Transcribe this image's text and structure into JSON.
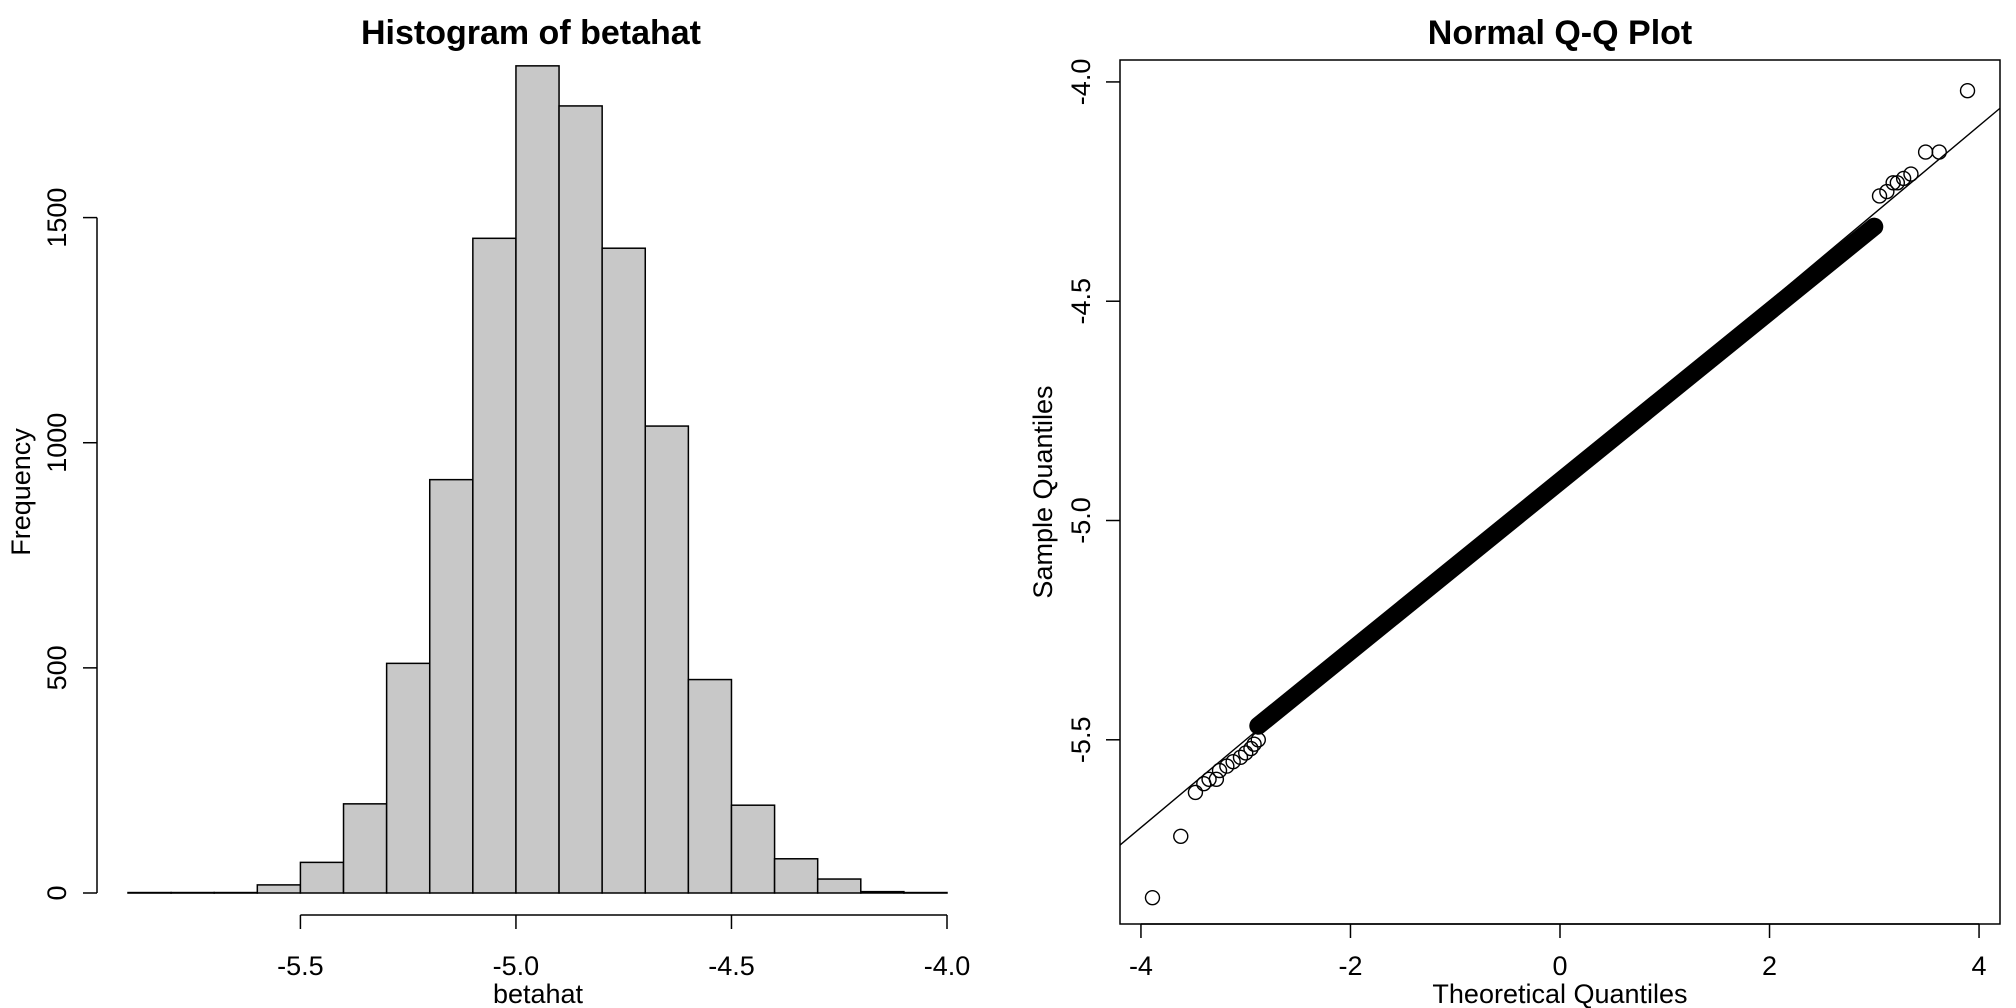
{
  "chart_data": [
    {
      "type": "bar",
      "subtype": "histogram",
      "title": "Histogram of betahat",
      "xlabel": "betahat",
      "ylabel": "Frequency",
      "bin_edges": [
        -5.9,
        -5.8,
        -5.7,
        -5.6,
        -5.5,
        -5.4,
        -5.3,
        -5.2,
        -5.1,
        -5.0,
        -4.9,
        -4.8,
        -4.7,
        -4.6,
        -4.5,
        -4.4,
        -4.3,
        -4.2,
        -4.1,
        -4.0
      ],
      "values": [
        1,
        1,
        1,
        18,
        68,
        198,
        510,
        918,
        1454,
        1837,
        1748,
        1432,
        1037,
        474,
        195,
        76,
        31,
        3,
        1
      ],
      "xlim": [
        -5.9,
        -4.0
      ],
      "ylim": [
        0,
        1850
      ],
      "x_ticks": [
        -5.5,
        -5.0,
        -4.5,
        -4.0
      ],
      "x_tick_labels": [
        "-5.5",
        "-5.0",
        "-4.5",
        "-4.0"
      ],
      "y_ticks": [
        0,
        500,
        1000,
        1500
      ],
      "y_tick_labels": [
        "0",
        "500",
        "1000",
        "1500"
      ],
      "bar_color": "#c8c8c8"
    },
    {
      "type": "scatter",
      "subtype": "qq-plot",
      "title": "Normal Q-Q Plot",
      "xlabel": "Theoretical Quantiles",
      "ylabel": "Sample Quantiles",
      "xlim": [
        -4.2,
        4.2
      ],
      "ylim": [
        -5.92,
        -3.95
      ],
      "x_ticks": [
        -4,
        -2,
        0,
        2,
        4
      ],
      "x_tick_labels": [
        "-4",
        "-2",
        "0",
        "2",
        "4"
      ],
      "y_ticks": [
        -5.5,
        -5.0,
        -4.5,
        -4.0
      ],
      "y_tick_labels": [
        "-5.5",
        "-5.0",
        "-4.5",
        "-4.0"
      ],
      "reference_line": {
        "intercept": -4.9,
        "slope": 0.2
      },
      "points": [
        [
          -3.89,
          -5.86
        ],
        [
          -3.62,
          -5.72
        ],
        [
          -3.48,
          -5.62
        ],
        [
          -3.4,
          -5.6
        ],
        [
          -3.35,
          -5.59
        ],
        [
          -3.28,
          -5.59
        ],
        [
          -3.25,
          -5.57
        ],
        [
          -3.18,
          -5.56
        ],
        [
          -3.12,
          -5.55
        ],
        [
          -3.05,
          -5.54
        ],
        [
          -3.0,
          -5.53
        ],
        [
          -2.95,
          -5.52
        ],
        [
          -2.92,
          -5.51
        ],
        [
          -2.88,
          -5.5
        ],
        [
          3.05,
          -4.26
        ],
        [
          3.12,
          -4.25
        ],
        [
          3.18,
          -4.23
        ],
        [
          3.22,
          -4.23
        ],
        [
          3.28,
          -4.22
        ],
        [
          3.35,
          -4.21
        ],
        [
          3.49,
          -4.16
        ],
        [
          3.62,
          -4.16
        ],
        [
          3.89,
          -4.02
        ]
      ]
    }
  ]
}
